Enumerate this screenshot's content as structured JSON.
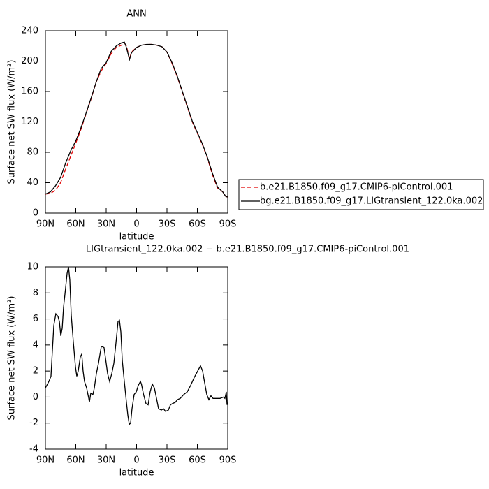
{
  "chart_data": [
    {
      "type": "line",
      "title": "ANN",
      "xlabel": "latitude",
      "ylabel": "Surface net SW flux (W/m²)",
      "x": [
        90,
        85,
        80,
        75,
        70,
        65,
        60,
        55,
        50,
        45,
        40,
        35,
        30,
        25,
        20,
        15,
        12,
        10,
        7,
        5,
        0,
        -5,
        -10,
        -15,
        -20,
        -25,
        -30,
        -35,
        -40,
        -45,
        -50,
        -55,
        -60,
        -65,
        -70,
        -75,
        -80,
        -85,
        -88,
        -90
      ],
      "series": [
        {
          "name": "b.e21.B1850.f09_g17.CMIP6-piControl.001",
          "color": "#e00000",
          "line_style": "dashed",
          "values": [
            25,
            26,
            30,
            40,
            58,
            75,
            92,
            110,
            130,
            150,
            172,
            187,
            197,
            210,
            218,
            221,
            224,
            220,
            203,
            212,
            218,
            221,
            222,
            222,
            221,
            219,
            212,
            197,
            180,
            160,
            140,
            120,
            105,
            90,
            72,
            50,
            33,
            28,
            22,
            21
          ]
        },
        {
          "name": "bg.e21.B1850.f09_g17.LIGtransient_122.0ka.002",
          "color": "#000000",
          "line_style": "solid",
          "values": [
            25,
            28,
            36,
            47,
            66,
            82,
            95,
            112,
            131,
            151,
            172,
            190,
            198,
            213,
            220,
            224,
            225,
            218,
            202,
            211,
            218,
            221,
            222,
            222,
            221,
            219,
            212,
            198,
            181,
            161,
            141,
            121,
            106,
            91,
            73,
            52,
            34,
            28,
            22,
            21
          ]
        }
      ],
      "xlim": [
        90,
        -90
      ],
      "xticks": [
        {
          "value": 90,
          "label": "90N"
        },
        {
          "value": 60,
          "label": "60N"
        },
        {
          "value": 30,
          "label": "30N"
        },
        0,
        {
          "value": -30,
          "label": "30S"
        },
        {
          "value": -60,
          "label": "60S"
        },
        {
          "value": -90,
          "label": "90S"
        }
      ],
      "ylim": [
        0,
        240
      ],
      "yticks": [
        0,
        40,
        80,
        120,
        160,
        200,
        240
      ],
      "legend": "right"
    },
    {
      "type": "line",
      "title": "LIGtransient_122.0ka.002 − b.e21.B1850.f09_g17.CMIP6-piControl.001",
      "xlabel": "latitude",
      "ylabel": "Surface net SW flux (W/m²)",
      "x": [
        90,
        86.6,
        84.5,
        83.1,
        81.7,
        79.7,
        77.6,
        76.2,
        74.8,
        73.4,
        72.1,
        70.7,
        68.6,
        67.2,
        65.9,
        64.5,
        62.4,
        60.3,
        59.0,
        57.6,
        55.5,
        54.1,
        52.8,
        51.4,
        49.3,
        47.2,
        46.6,
        45.2,
        43.1,
        41.7,
        39.7,
        37.6,
        34.8,
        32.1,
        30.7,
        28.6,
        26.6,
        24.5,
        22.4,
        20.3,
        18.3,
        16.9,
        15.5,
        14.1,
        12.1,
        10.0,
        8.6,
        7.2,
        5.9,
        4.5,
        2.4,
        0.3,
        -1.7,
        -3.8,
        -4.8,
        -6.9,
        -9.3,
        -11.4,
        -13.4,
        -15.5,
        -17.6,
        -19.7,
        -21.7,
        -24.5,
        -26.6,
        -28.6,
        -31.4,
        -33.4,
        -35.5,
        -38.3,
        -40.3,
        -43.1,
        -46.6,
        -50.0,
        -53.4,
        -56.9,
        -60.3,
        -63.1,
        -65.2,
        -67.2,
        -69.3,
        -71.4,
        -73.4,
        -75.5,
        -79.0,
        -82.4,
        -85.9,
        -87.2,
        -88.6,
        -89.3
      ],
      "series": [
        {
          "color": "#000000",
          "line_style": "solid",
          "values": [
            0.7,
            1.2,
            1.6,
            3.6,
            5.5,
            6.4,
            6.2,
            5.8,
            4.7,
            5.3,
            6.9,
            7.9,
            9.5,
            10.0,
            9.0,
            6.3,
            4.2,
            2.3,
            1.6,
            2.0,
            3.1,
            3.3,
            2.0,
            1.2,
            0.7,
            -0.1,
            -0.4,
            0.3,
            0.2,
            0.7,
            1.8,
            2.6,
            3.9,
            3.8,
            3.0,
            1.8,
            1.2,
            1.8,
            2.6,
            4.2,
            5.8,
            5.9,
            5.0,
            2.8,
            1.2,
            -0.4,
            -1.4,
            -2.1,
            -2.0,
            -0.9,
            0.2,
            0.4,
            0.9,
            1.2,
            1.0,
            0.2,
            -0.5,
            -0.6,
            0.4,
            1.0,
            0.7,
            -0.1,
            -0.9,
            -1.0,
            -0.9,
            -1.1,
            -1.0,
            -0.6,
            -0.5,
            -0.4,
            -0.2,
            -0.1,
            0.2,
            0.4,
            0.9,
            1.5,
            2.0,
            2.4,
            2.0,
            1.1,
            0.2,
            -0.2,
            0.1,
            -0.1,
            -0.1,
            -0.1,
            0.0,
            -0.1,
            0.4,
            -0.6
          ]
        }
      ],
      "xlim": [
        90,
        -90
      ],
      "xticks": [
        {
          "value": 90,
          "label": "90N"
        },
        {
          "value": 60,
          "label": "60N"
        },
        {
          "value": 30,
          "label": "30N"
        },
        0,
        {
          "value": -30,
          "label": "30S"
        },
        {
          "value": -60,
          "label": "60S"
        },
        {
          "value": -90,
          "label": "90S"
        }
      ],
      "ylim": [
        -4,
        10
      ],
      "yticks": [
        -4,
        -2,
        0,
        2,
        4,
        6,
        8,
        10
      ]
    }
  ]
}
